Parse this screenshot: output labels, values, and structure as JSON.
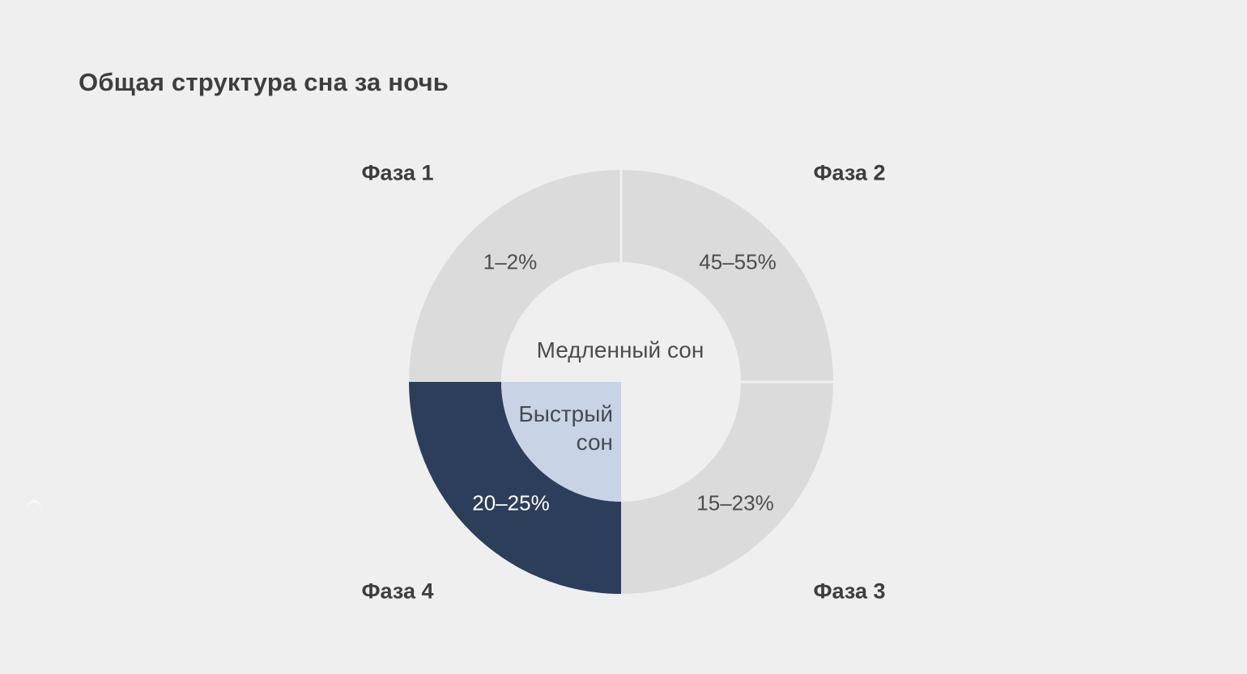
{
  "title": "Общая структура сна за ночь",
  "colors": {
    "background": "#efefef",
    "segment_gray": "#dbdbdb",
    "segment_navy": "#2d3e5b",
    "rem_quarter_blue": "#c8d3e6",
    "title_text": "#3e3e3e",
    "label_text": "#4d4d4d",
    "white_text": "#ffffff"
  },
  "chart_data": {
    "type": "pie",
    "donut": true,
    "title": "Общая структура сна за ночь",
    "angle_convention": "degrees clockwise from 12 o'clock; each phase drawn as an equal quarter ring",
    "segments": [
      {
        "phase": "Фаза 1",
        "value_label": "1–2%",
        "value_min": 1,
        "value_max": 2,
        "sleep_type": "Медленный сон",
        "color": "#dbdbdb",
        "text_color": "#4d4d4d",
        "start_angle": 270,
        "end_angle": 360
      },
      {
        "phase": "Фаза 2",
        "value_label": "45–55%",
        "value_min": 45,
        "value_max": 55,
        "sleep_type": "Медленный сон",
        "color": "#dbdbdb",
        "text_color": "#4d4d4d",
        "start_angle": 0,
        "end_angle": 90
      },
      {
        "phase": "Фаза 3",
        "value_label": "15–23%",
        "value_min": 15,
        "value_max": 23,
        "sleep_type": "Медленный сон",
        "color": "#dbdbdb",
        "text_color": "#4d4d4d",
        "start_angle": 90,
        "end_angle": 180
      },
      {
        "phase": "Фаза 4",
        "value_label": "20–25%",
        "value_min": 20,
        "value_max": 25,
        "sleep_type": "Быстрый сон",
        "color": "#2d3e5b",
        "text_color": "#ffffff",
        "start_angle": 180,
        "end_angle": 270
      }
    ],
    "center_label": "Медленный сон",
    "inner_quarter": {
      "label": "Быстрый сон",
      "label_line1": "Быстрый",
      "label_line2": "сон",
      "color": "#c8d3e6",
      "start_angle": 180,
      "end_angle": 270
    },
    "divider_angles": [
      0,
      90
    ],
    "divider_color": "#efefef",
    "legend_position": "labels around donut"
  }
}
